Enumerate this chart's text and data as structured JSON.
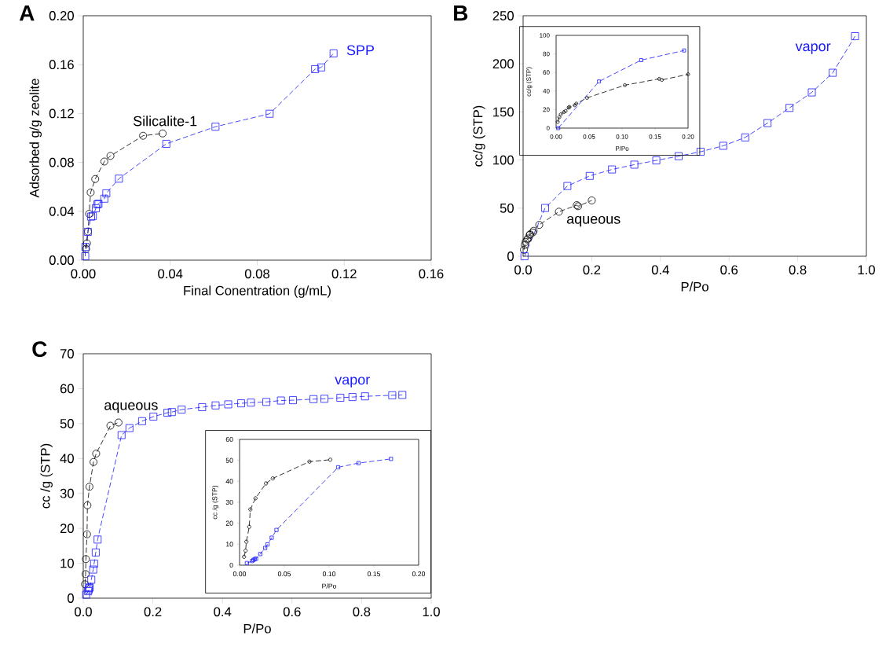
{
  "chart_data": [
    {
      "type": "line",
      "title": "A",
      "xlabel": "Final Conentration (g/mL)",
      "ylabel": "Adsorbed g/g zeolite",
      "line_style": "dashed",
      "xlim": [
        0,
        0.16
      ],
      "ylim": [
        0,
        0.2
      ],
      "xticks": [
        {
          "value": 0,
          "label": "0.00"
        },
        {
          "value": 0.04,
          "label": "0.04"
        },
        {
          "value": 0.08,
          "label": "0.08"
        },
        {
          "value": 0.12,
          "label": "0.12"
        },
        {
          "value": 0.16,
          "label": "0.16"
        }
      ],
      "yticks": [
        {
          "value": 0,
          "label": "0.00"
        },
        {
          "value": 0.04,
          "label": "0.04"
        },
        {
          "value": 0.08,
          "label": "0.08"
        },
        {
          "value": 0.12,
          "label": "0.12"
        },
        {
          "value": 0.16,
          "label": "0.16"
        },
        {
          "value": 0.2,
          "label": "0.20"
        }
      ],
      "series": [
        {
          "name": "Silicalite-1",
          "color": "#000000",
          "marker": "circle",
          "x": [
            0.0013,
            0.0017,
            0.0022,
            0.0027,
            0.0034,
            0.0055,
            0.0097,
            0.0125,
            0.0275,
            0.0365
          ],
          "values": [
            0.0092,
            0.0138,
            0.0234,
            0.0379,
            0.0554,
            0.0664,
            0.0807,
            0.0853,
            0.1018,
            0.1037
          ]
        },
        {
          "name": "SPP",
          "color": "#1a1aff",
          "marker": "square",
          "x": [
            0.0009,
            0.001,
            0.0021,
            0.0036,
            0.0044,
            0.0058,
            0.0065,
            0.007,
            0.0097,
            0.0106,
            0.0164,
            0.0382,
            0.0608,
            0.0857,
            0.1066,
            0.1094,
            0.1151
          ],
          "values": [
            0.0032,
            0.0108,
            0.0232,
            0.0356,
            0.0361,
            0.0425,
            0.0457,
            0.0462,
            0.0503,
            0.0547,
            0.0667,
            0.0952,
            0.1092,
            0.1198,
            0.1563,
            0.1577,
            0.1692
          ]
        }
      ]
    },
    {
      "type": "line",
      "title": "B",
      "xlabel": "P/Po",
      "ylabel": "cc/g (STP)",
      "line_style": "dashed",
      "xlim": [
        0,
        1
      ],
      "ylim": [
        0,
        250
      ],
      "xticks": [
        {
          "value": 0,
          "label": "0.0"
        },
        0.2,
        0.4,
        0.6,
        0.8,
        {
          "value": 1,
          "label": "1.0"
        }
      ],
      "yticks": [
        0,
        50,
        100,
        150,
        200,
        250
      ],
      "series": [
        {
          "name": "aqueous",
          "color": "#000000",
          "marker": "circle",
          "x": [
            0.0024,
            0.0048,
            0.0072,
            0.0119,
            0.0143,
            0.0191,
            0.0203,
            0.0282,
            0.0306,
            0.0469,
            0.1042,
            0.1563,
            0.1602,
            0.2
          ],
          "values": [
            6.7,
            11.8,
            14.9,
            17.4,
            18.5,
            22.2,
            22.8,
            24.7,
            26.4,
            32.6,
            46.3,
            53.1,
            52.0,
            58.0
          ]
        },
        {
          "name": "vapor",
          "color": "#1a1aff",
          "marker": "square",
          "x": [
            0.004,
            0.064,
            0.129,
            0.194,
            0.259,
            0.324,
            0.388,
            0.453,
            0.517,
            0.583,
            0.647,
            0.712,
            0.776,
            0.841,
            0.902,
            0.967
          ],
          "values": [
            0,
            50.2,
            73.0,
            83.5,
            90.2,
            95.2,
            99.6,
            104.0,
            108.6,
            114.8,
            123.5,
            138.4,
            154.2,
            170.3,
            190.7,
            228.7
          ]
        }
      ]
    },
    {
      "type": "line",
      "xlabel": "P/Po",
      "ylabel": "cc/g (STP)",
      "line_style": "dashed",
      "xlim": [
        0,
        0.2
      ],
      "ylim": [
        0,
        100
      ],
      "xticks": [
        {
          "value": 0,
          "label": "0.00"
        },
        0.05,
        {
          "value": 0.1,
          "label": "0.10"
        },
        0.15,
        {
          "value": 0.2,
          "label": "0.20"
        }
      ],
      "yticks": [
        0,
        20,
        40,
        60,
        80,
        100
      ],
      "series": [
        {
          "color": "#000000",
          "marker": "circle",
          "x": [
            0.0024,
            0.0048,
            0.0072,
            0.0119,
            0.0143,
            0.0191,
            0.0203,
            0.0282,
            0.0306,
            0.0469,
            0.1042,
            0.1563,
            0.1602,
            0.2
          ],
          "values": [
            6.7,
            11.8,
            14.9,
            17.4,
            18.5,
            22.2,
            22.8,
            24.7,
            26.4,
            32.6,
            46.3,
            53.1,
            52.0,
            58.0
          ]
        },
        {
          "color": "#1a1aff",
          "marker": "square",
          "x": [
            0.0032,
            0.065,
            0.129,
            0.194
          ],
          "values": [
            0,
            50.3,
            73.3,
            83.7
          ]
        }
      ]
    },
    {
      "type": "line",
      "title": "C",
      "xlabel": "P/Po",
      "ylabel": "cc /g (STP)",
      "line_style": "dashed",
      "xlim": [
        0,
        1
      ],
      "ylim": [
        0,
        70
      ],
      "xticks": [
        {
          "value": 0,
          "label": "0.0"
        },
        0.2,
        0.4,
        0.6,
        0.8,
        {
          "value": 1,
          "label": "1.0"
        }
      ],
      "yticks": [
        0,
        10,
        20,
        30,
        40,
        50,
        60,
        70
      ],
      "series": [
        {
          "name": "aqueous",
          "color": "#000000",
          "marker": "circle",
          "x": [
            0.005,
            0.0067,
            0.0076,
            0.0108,
            0.012,
            0.0178,
            0.0295,
            0.0371,
            0.078,
            0.1013
          ],
          "values": [
            4.0,
            6.9,
            11.2,
            18.3,
            26.6,
            31.9,
            39.0,
            41.4,
            49.4,
            50.3
          ]
        },
        {
          "name": "vapor",
          "color": "#1a1aff",
          "marker": "square",
          "x": [
            0.0082,
            0.014,
            0.0155,
            0.0169,
            0.0184,
            0.0231,
            0.0286,
            0.0312,
            0.0359,
            0.0412,
            0.1101,
            0.1328,
            0.1691,
            0.2015,
            0.2418,
            0.2546,
            0.2828,
            0.3417,
            0.3803,
            0.4166,
            0.4537,
            0.4819,
            0.5262,
            0.5681,
            0.6027,
            0.6616,
            0.693,
            0.7389,
            0.7736,
            0.8098,
            0.888,
            0.917
          ],
          "values": [
            1.0,
            2.0,
            2.5,
            2.9,
            3.1,
            5.3,
            8.2,
            9.9,
            13.1,
            16.8,
            46.7,
            48.7,
            50.7,
            52.0,
            53.1,
            53.3,
            54.0,
            54.7,
            55.2,
            55.5,
            55.8,
            56.0,
            56.2,
            56.6,
            56.7,
            57.0,
            57.1,
            57.4,
            57.6,
            57.8,
            58.1,
            58.2
          ]
        }
      ]
    },
    {
      "type": "line",
      "xlabel": "P/Po",
      "ylabel": "cc /g (STP)",
      "line_style": "dashed",
      "xlim": [
        0,
        0.2
      ],
      "ylim": [
        0,
        60
      ],
      "xticks": [
        {
          "value": 0,
          "label": "0.00"
        },
        0.05,
        {
          "value": 0.1,
          "label": "0.10"
        },
        0.15,
        {
          "value": 0.2,
          "label": "0.20"
        }
      ],
      "yticks": [
        0,
        10,
        20,
        30,
        40,
        50,
        60
      ],
      "series": [
        {
          "color": "#000000",
          "marker": "circle",
          "x": [
            0.005,
            0.0067,
            0.0076,
            0.0108,
            0.012,
            0.0178,
            0.0295,
            0.0371,
            0.078,
            0.1013
          ],
          "values": [
            4.0,
            6.9,
            11.2,
            18.3,
            26.6,
            31.9,
            39.0,
            41.4,
            49.4,
            50.3
          ]
        },
        {
          "color": "#1a1aff",
          "marker": "square",
          "x": [
            0.0082,
            0.014,
            0.0155,
            0.0169,
            0.0184,
            0.0231,
            0.0286,
            0.0312,
            0.0359,
            0.0412,
            0.1101,
            0.1328,
            0.1691
          ],
          "values": [
            1.0,
            2.0,
            2.5,
            2.9,
            3.1,
            5.3,
            8.2,
            9.9,
            13.1,
            16.8,
            46.7,
            48.7,
            50.7
          ]
        }
      ]
    }
  ]
}
